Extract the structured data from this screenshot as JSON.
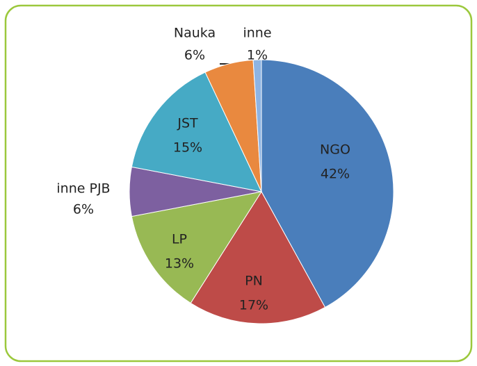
{
  "chart_data": {
    "type": "pie",
    "categories": [
      "NGO",
      "PN",
      "LP",
      "inne PJB",
      "JST",
      "Nauka",
      "inne"
    ],
    "values": [
      42,
      17,
      13,
      6,
      15,
      6,
      1
    ],
    "value_labels": [
      "42%",
      "17%",
      "13%",
      "6%",
      "15%",
      "6%",
      "1%"
    ],
    "colors": [
      "#4a7ebb",
      "#be4b48",
      "#98b954",
      "#7d60a0",
      "#46aac5",
      "#e9893f",
      "#8eb4e3"
    ]
  }
}
